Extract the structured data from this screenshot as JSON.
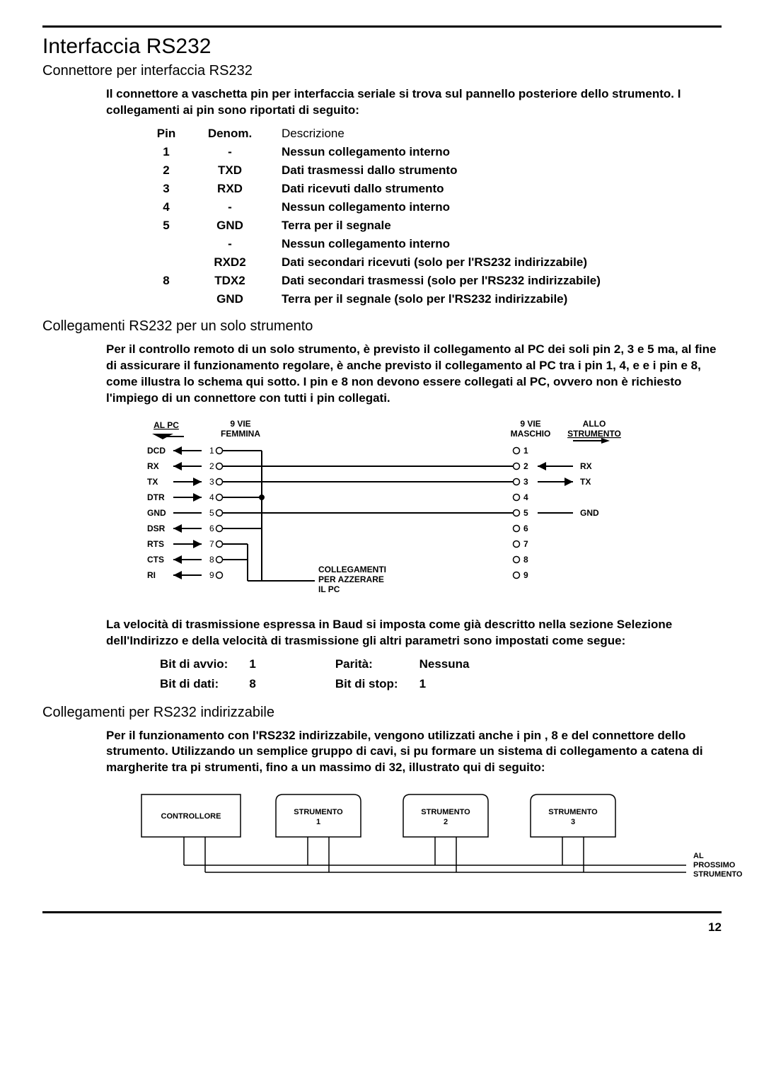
{
  "page": {
    "title": "Interfaccia RS232",
    "section_connector": "Connettore per interfaccia RS232",
    "intro": "Il connettore a vaschetta pin per interfaccia seriale si trova sul pannello posteriore dello strumento.  I collegamenti ai pin sono riportati di seguito:",
    "tbl_headers": {
      "pin": "Pin",
      "denom": "Denom.",
      "desc": "Descrizione"
    },
    "pins": [
      {
        "n": "1",
        "d": "-",
        "desc": "Nessun collegamento interno"
      },
      {
        "n": "2",
        "d": "TXD",
        "desc": "Dati trasmessi dallo strumento"
      },
      {
        "n": "3",
        "d": "RXD",
        "desc": "Dati ricevuti dallo strumento"
      },
      {
        "n": "4",
        "d": "-",
        "desc": "Nessun collegamento interno"
      },
      {
        "n": "5",
        "d": "GND",
        "desc": "Terra per il segnale"
      },
      {
        "n": "",
        "d": "-",
        "desc": "Nessun collegamento interno"
      },
      {
        "n": "",
        "d": "RXD2",
        "desc": "Dati secondari ricevuti (solo per l'RS232 indirizzabile)"
      },
      {
        "n": "8",
        "d": "TDX2",
        "desc": "Dati secondari trasmessi (solo per l'RS232 indirizzabile)"
      },
      {
        "n": "",
        "d": "GND",
        "desc": "Terra per il segnale (solo per l'RS232 indirizzabile)"
      }
    ],
    "section_single": "Collegamenti RS232 per un solo strumento",
    "single_text": "Per il controllo remoto di un solo strumento, è previsto il collegamento al PC dei soli pin 2, 3 e 5 ma, al fine di assicurare il funzionamento regolare, è anche previsto il collegamento al PC tra i pin 1, 4, e  e i pin  e 8, come illustra lo schema qui sotto. I pin  e 8 non  devono essere collegati al PC, ovvero non è richiesto l'impiego di un connettore con tutti i  pin collegati.",
    "wiring": {
      "left_title1": "AL PC",
      "left_title2": "9 VIE",
      "left_title3": "FEMMINA",
      "right_title1": "9 VIE",
      "right_title2": "MASCHIO",
      "right_title3": "ALLO",
      "right_title4": "STRUMENTO",
      "left_labels": [
        "DCD",
        "RX",
        "TX",
        "DTR",
        "GND",
        "DSR",
        "RTS",
        "CTS",
        "RI"
      ],
      "right_labels": {
        "rx": "RX",
        "tx": "TX",
        "gnd": "GND"
      },
      "note1": "COLLEGAMENTI",
      "note2": "PER AZZERARE",
      "note3": "IL PC"
    },
    "baud_text": "La velocità di trasmissione espressa in Baud si imposta come già descritto nella sezione Selezione dell'Indirizzo e della velocità di trasmissione gli altri parametri sono impostati come segue:",
    "params": {
      "start_lbl": "Bit di avvio:",
      "start_val": "1",
      "parity_lbl": "Parità:",
      "parity_val": "Nessuna",
      "data_lbl": "Bit di dati:",
      "data_val": "8",
      "stop_lbl": "Bit di stop:",
      "stop_val": "1"
    },
    "section_addr": "Collegamenti per RS232 indirizzabile",
    "addr_text": "Per il funzionamento con l'RS232 indirizzabile, vengono utilizzati anche i pin , 8 e  del connettore dello strumento.  Utilizzando un semplice gruppo di cavi, si pu formare un sistema di collegamento a catena di margherite tra pi strumenti, fino a un massimo di 32, illustrato qui di seguito:",
    "chain": {
      "controller": "CONTROLLORE",
      "inst1a": "STRUMENTO",
      "inst1b": "1",
      "inst2a": "STRUMENTO",
      "inst2b": "2",
      "inst3a": "STRUMENTO",
      "inst3b": "3",
      "next1": "AL",
      "next2": "PROSSIMO",
      "next3": "STRUMENTO"
    },
    "page_num": "12"
  },
  "style": {
    "line_color": "#000000",
    "bg": "#ffffff",
    "diagram_font_small": 11,
    "diagram_font_med": 12
  }
}
